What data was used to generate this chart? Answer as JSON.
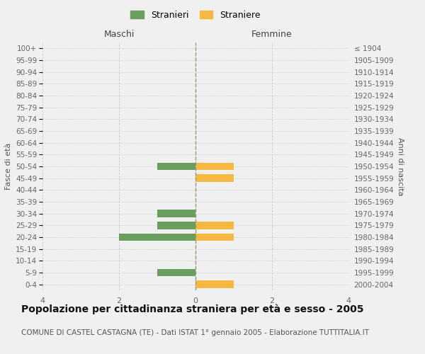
{
  "age_groups": [
    "0-4",
    "5-9",
    "10-14",
    "15-19",
    "20-24",
    "25-29",
    "30-34",
    "35-39",
    "40-44",
    "45-49",
    "50-54",
    "55-59",
    "60-64",
    "65-69",
    "70-74",
    "75-79",
    "80-84",
    "85-89",
    "90-94",
    "95-99",
    "100+"
  ],
  "birth_years": [
    "2000-2004",
    "1995-1999",
    "1990-1994",
    "1985-1989",
    "1980-1984",
    "1975-1979",
    "1970-1974",
    "1965-1969",
    "1960-1964",
    "1955-1959",
    "1950-1954",
    "1945-1949",
    "1940-1944",
    "1935-1939",
    "1930-1934",
    "1925-1929",
    "1920-1924",
    "1915-1919",
    "1910-1914",
    "1905-1909",
    "≤ 1904"
  ],
  "males": [
    0,
    -1,
    0,
    0,
    -2,
    -1,
    -1,
    0,
    0,
    0,
    -1,
    0,
    0,
    0,
    0,
    0,
    0,
    0,
    0,
    0,
    0
  ],
  "females": [
    1,
    0,
    0,
    0,
    1,
    1,
    0,
    0,
    0,
    1,
    1,
    0,
    0,
    0,
    0,
    0,
    0,
    0,
    0,
    0,
    0
  ],
  "male_color": "#6a9e5e",
  "female_color": "#f5b942",
  "legend_male": "Stranieri",
  "legend_female": "Straniere",
  "left_label": "Maschi",
  "right_label": "Femmine",
  "ylabel_left": "Fasce di età",
  "ylabel_right": "Anni di nascita",
  "xlim": 4,
  "xticks": [
    -4,
    -2,
    0,
    2,
    4
  ],
  "xtick_labels": [
    "4",
    "2",
    "0",
    "2",
    "4"
  ],
  "title": "Popolazione per cittadinanza straniera per età e sesso - 2005",
  "subtitle": "COMUNE DI CASTEL CASTAGNA (TE) - Dati ISTAT 1° gennaio 2005 - Elaborazione TUTTITALIA.IT",
  "bg_color": "#f0f0f0",
  "grid_color": "#cccccc",
  "bar_height": 0.65,
  "title_fontsize": 10,
  "subtitle_fontsize": 7.5
}
